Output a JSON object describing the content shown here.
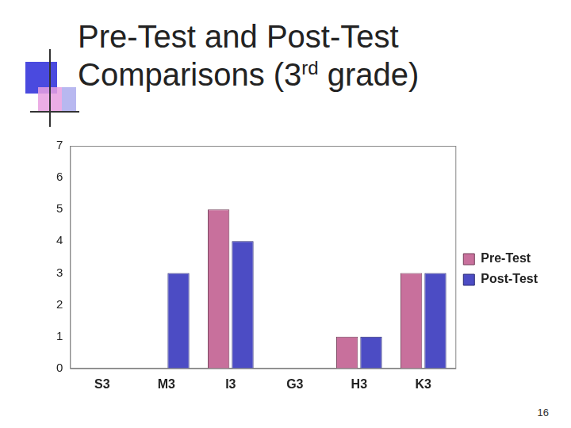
{
  "chart_data": {
    "type": "bar",
    "title": "Pre-Test and Post-Test Comparisons (3rd grade)",
    "categories": [
      "S3",
      "M3",
      "I3",
      "G3",
      "H3",
      "K3"
    ],
    "series": [
      {
        "name": "Pre-Test",
        "color": "#c8709c",
        "values": [
          0,
          0,
          5,
          0,
          1,
          3
        ]
      },
      {
        "name": "Post-Test",
        "color": "#4c4cc4",
        "values": [
          0,
          3,
          4,
          0,
          1,
          3
        ]
      }
    ],
    "ylim": [
      0,
      7
    ],
    "yticks": [
      0,
      1,
      2,
      3,
      4,
      5,
      6,
      7
    ],
    "grid": false,
    "legend": "right"
  },
  "page_number": 16
}
